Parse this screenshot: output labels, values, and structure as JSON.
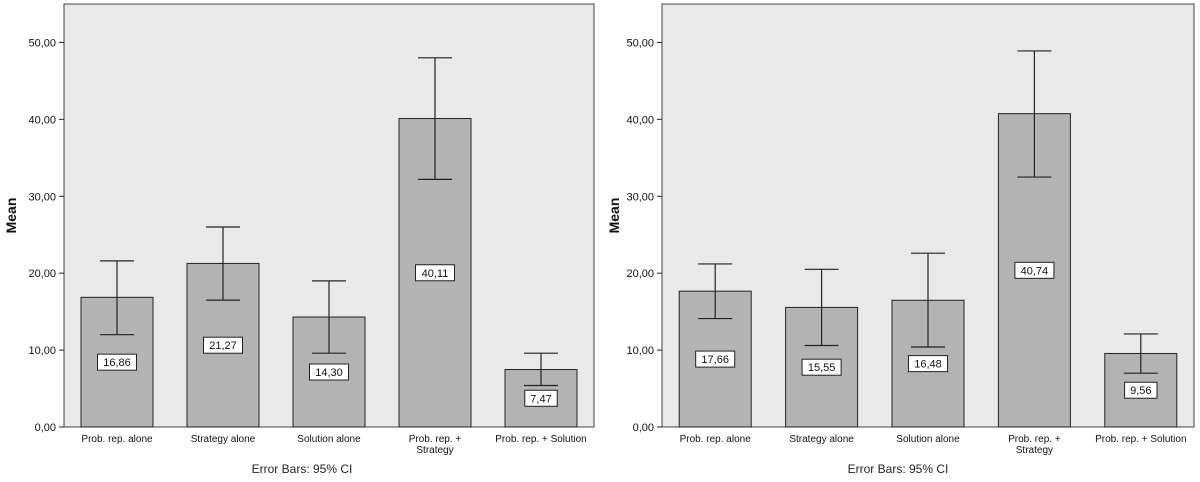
{
  "chart_data": [
    {
      "type": "bar",
      "title": "",
      "xlabel": "",
      "ylabel": "Mean",
      "ylim": [
        0,
        55
      ],
      "yticks": [
        "0,00",
        "10,00",
        "20,00",
        "30,00",
        "40,00",
        "50,00"
      ],
      "yticks_values": [
        0,
        10,
        20,
        30,
        40,
        50
      ],
      "categories": [
        [
          "Prob. rep. alone"
        ],
        [
          "Strategy alone"
        ],
        [
          "Solution alone"
        ],
        [
          "Prob. rep. +",
          "Strategy"
        ],
        [
          "Prob. rep. + Solution"
        ]
      ],
      "values": [
        16.86,
        21.27,
        14.3,
        40.11,
        7.47
      ],
      "value_labels": [
        "16,86",
        "21,27",
        "14,30",
        "40,11",
        "7,47"
      ],
      "error_low": [
        12.0,
        16.5,
        9.6,
        32.2,
        5.4
      ],
      "error_high": [
        21.6,
        26.0,
        19.0,
        48.0,
        9.6
      ],
      "note": "Error Bars: 95% CI",
      "grid": false,
      "bar_color": "#b3b3b3",
      "plot_background": "#e9e9e9"
    },
    {
      "type": "bar",
      "title": "",
      "xlabel": "",
      "ylabel": "Mean",
      "ylim": [
        0,
        55
      ],
      "yticks": [
        "0,00",
        "10,00",
        "20,00",
        "30,00",
        "40,00",
        "50,00"
      ],
      "yticks_values": [
        0,
        10,
        20,
        30,
        40,
        50
      ],
      "categories": [
        [
          "Prob. rep. alone"
        ],
        [
          "Strategy alone"
        ],
        [
          "Solution alone"
        ],
        [
          "Prob. rep. +",
          "Strategy"
        ],
        [
          "Prob. rep. + Solution"
        ]
      ],
      "values": [
        17.66,
        15.55,
        16.48,
        40.74,
        9.56
      ],
      "value_labels": [
        "17,66",
        "15,55",
        "16,48",
        "40,74",
        "9,56"
      ],
      "error_low": [
        14.1,
        10.6,
        10.4,
        32.5,
        7.0
      ],
      "error_high": [
        21.2,
        20.5,
        22.6,
        48.9,
        12.1
      ],
      "note": "Error Bars: 95% CI",
      "grid": false,
      "bar_color": "#b3b3b3",
      "plot_background": "#e9e9e9"
    }
  ]
}
